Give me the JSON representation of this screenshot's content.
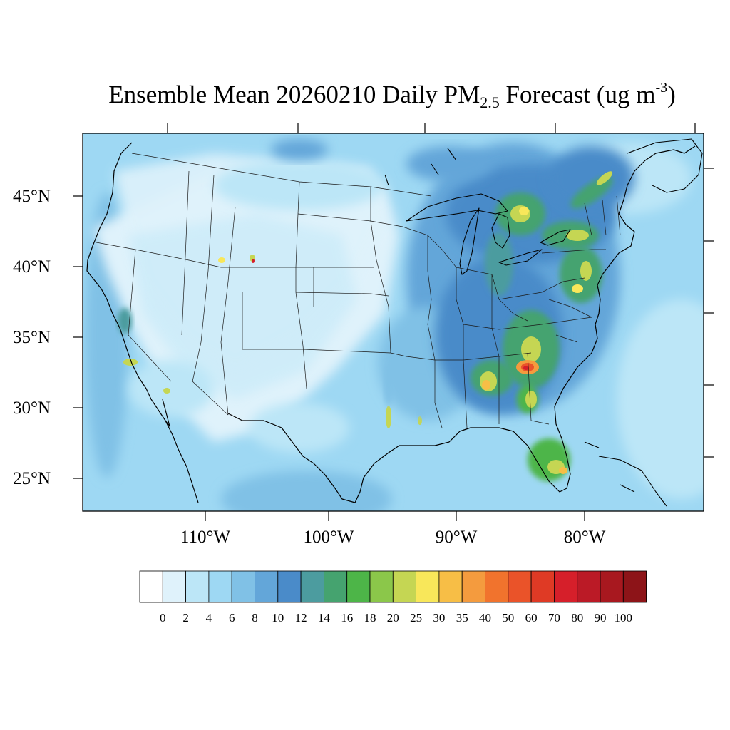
{
  "title": {
    "main": "Ensemble Mean 20260210 Daily PM",
    "sub": "2.5",
    "mid": " Forecast (ug m",
    "sup": "-3",
    "end": ")"
  },
  "lat_labels": [
    "45°N",
    "40°N",
    "35°N",
    "30°N",
    "25°N"
  ],
  "lon_labels": [
    "110°W",
    "100°W",
    "90°W",
    "80°W"
  ],
  "colorbar": {
    "labels": [
      "0",
      "2",
      "4",
      "6",
      "8",
      "10",
      "12",
      "14",
      "16",
      "18",
      "20",
      "25",
      "30",
      "35",
      "40",
      "50",
      "60",
      "70",
      "80",
      "90",
      "100"
    ],
    "colors": [
      "#ffffff",
      "#dff2fb",
      "#bce6f7",
      "#9ed8f3",
      "#80c1e6",
      "#63a6d9",
      "#4a8bc9",
      "#4c9c9f",
      "#45a36f",
      "#4db548",
      "#8bc74a",
      "#c5d653",
      "#f8e75a",
      "#f7be46",
      "#f49b3e",
      "#f1732d",
      "#ea5329",
      "#df3a25",
      "#d61f2a",
      "#bb1a26",
      "#a8181f",
      "#8d1418"
    ]
  }
}
